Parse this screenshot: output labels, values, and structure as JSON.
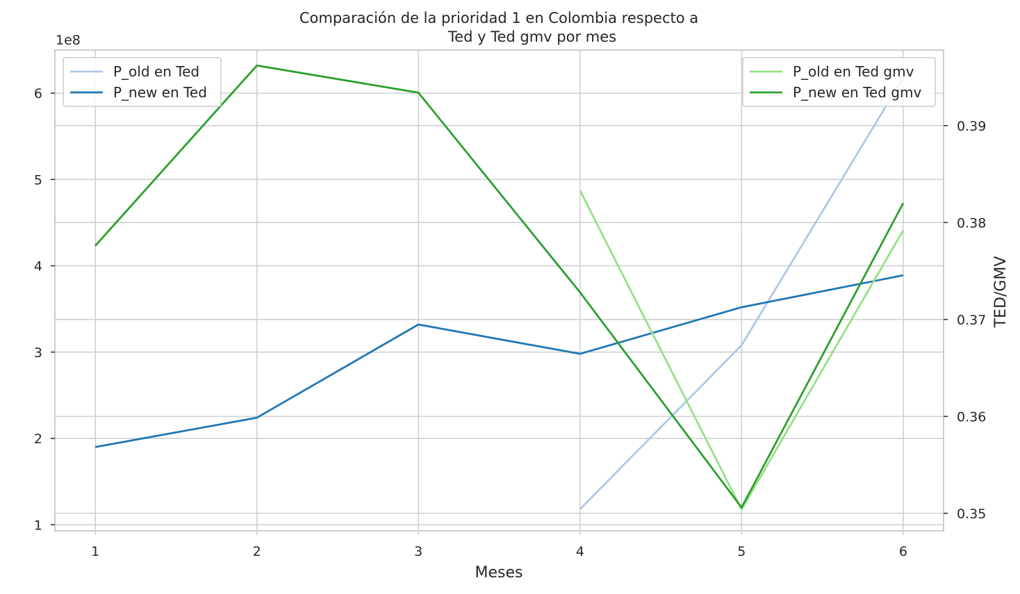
{
  "chart_data": {
    "type": "line",
    "title_lines": [
      "Comparación de la prioridad 1 en Colombia respecto a",
      "Ted y Ted gmv por mes"
    ],
    "xlabel": "Meses",
    "ylabel_left": "",
    "ylabel_right": "TED/GMV",
    "left_offset_text": "1e8",
    "x": [
      1,
      2,
      3,
      4,
      5,
      6
    ],
    "x_ticks": [
      1,
      2,
      3,
      4,
      5,
      6
    ],
    "xlim": [
      0.75,
      6.25
    ],
    "left_axis": {
      "ylim": [
        0.93,
        6.5
      ],
      "ticks": [
        1,
        2,
        3,
        4,
        5,
        6
      ],
      "tick_labels": [
        "1",
        "2",
        "3",
        "4",
        "5",
        "6"
      ]
    },
    "right_axis": {
      "ylim": [
        0.3482,
        0.3978
      ],
      "ticks": [
        0.35,
        0.36,
        0.37,
        0.38,
        0.39
      ],
      "tick_labels": [
        "0.35",
        "0.36",
        "0.37",
        "0.38",
        "0.39"
      ]
    },
    "grid": true,
    "series": [
      {
        "name": "P_old en Ted",
        "axis": "left",
        "color": "#aec7e8",
        "points": [
          [
            4,
            1.18
          ],
          [
            5,
            3.08
          ],
          [
            6,
            6.18
          ]
        ]
      },
      {
        "name": "P_new en Ted",
        "axis": "left",
        "color": "#1f77b4",
        "points": [
          [
            1,
            1.9
          ],
          [
            2,
            2.24
          ],
          [
            3,
            3.32
          ],
          [
            4,
            2.98
          ],
          [
            5,
            3.52
          ],
          [
            6,
            3.89
          ]
        ]
      },
      {
        "name": "P_old en Ted gmv",
        "axis": "right",
        "color": "#98df8a",
        "points": [
          [
            4,
            0.3833
          ],
          [
            5,
            0.3504
          ],
          [
            6,
            0.3792
          ]
        ]
      },
      {
        "name": "P_new en Ted gmv",
        "axis": "right",
        "color": "#2ca02c",
        "points": [
          [
            1,
            0.3776
          ],
          [
            2,
            0.3962
          ],
          [
            3,
            0.3934
          ],
          [
            4,
            0.3728
          ],
          [
            5,
            0.3506
          ],
          [
            6,
            0.382
          ]
        ]
      }
    ],
    "legends": [
      {
        "placement": "upper-left",
        "entries": [
          "P_old en Ted",
          "P_new en Ted"
        ]
      },
      {
        "placement": "upper-right",
        "entries": [
          "P_old en Ted gmv",
          "P_new en Ted gmv"
        ]
      }
    ]
  }
}
